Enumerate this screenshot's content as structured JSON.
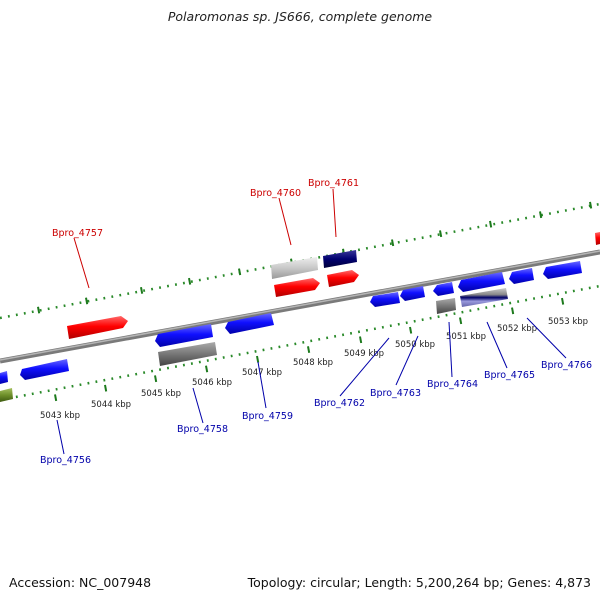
{
  "title": "Polaromonas sp. JS666, complete genome",
  "footer": {
    "accession": "Accession: NC_007948",
    "summary": "Topology: circular; Length: 5,200,264 bp; Genes: 4,873"
  },
  "colors": {
    "plus_strand_gene": "#ff0000",
    "minus_strand_gene": "#0000ff",
    "label_plus": "#cc0000",
    "label_minus": "#0000aa",
    "backbone": "#888888",
    "ticks": "#2a8a2a"
  },
  "scale_labels": [
    "5043 kbp",
    "5044 kbp",
    "5045 kbp",
    "5046 kbp",
    "5047 kbp",
    "5048 kbp",
    "5049 kbp",
    "5050 kbp",
    "5051 kbp",
    "5052 kbp",
    "5053 kbp"
  ],
  "genes_top": [
    "Bpro_4757",
    "Bpro_4760",
    "Bpro_4761"
  ],
  "genes_bottom": [
    "Bpro_4756",
    "Bpro_4758",
    "Bpro_4759",
    "Bpro_4762",
    "Bpro_4763",
    "Bpro_4764",
    "Bpro_4765",
    "Bpro_4766"
  ]
}
